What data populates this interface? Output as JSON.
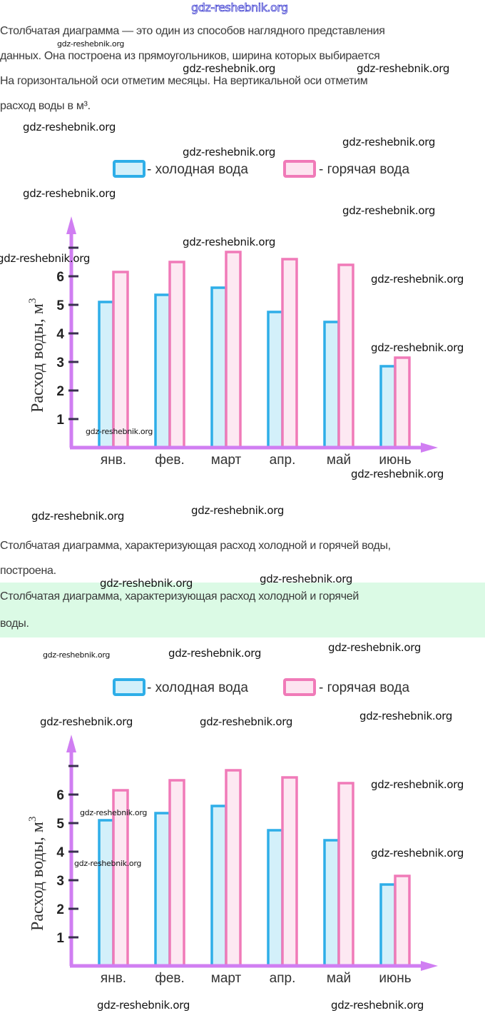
{
  "watermark": {
    "top": "gdz-reshebnik.org",
    "text": "gdz-reshebnik.org"
  },
  "intro": {
    "lines": [
      "Столбчатая диаграмма — это один из способов наглядного представления",
      "данных. Она построена из прямоугольников, ширина которых выбирается",
      "На горизонтальной оси отметим месяцы. На вертикальной оси отметим",
      "расход воды в м³."
    ]
  },
  "conclusion": {
    "lines": [
      "Столбчатая диаграмма, характеризующая расход холодной и горячей воды,",
      "построена."
    ]
  },
  "answer": {
    "lines": [
      "Столбчатая диаграмма, характеризующая расход холодной и горячей",
      "воды."
    ],
    "background": "#dbfae5"
  },
  "colors": {
    "cold_stroke": "#2eaee8",
    "cold_fill": "#d3f0fa",
    "hot_stroke": "#f07ab8",
    "hot_fill": "#fde4f0",
    "axis": "#d07ef2",
    "tick": "#3a3050"
  },
  "chart_data": [
    {
      "type": "bar",
      "title": "",
      "xlabel": "",
      "ylabel": "Расход воды, м³",
      "ylabel_main": "Расход  воды, м",
      "ylabel_sup": "3",
      "ylim": [
        0,
        7
      ],
      "yticks": [
        1,
        2,
        3,
        4,
        5,
        6,
        7
      ],
      "ytick_labels": [
        "1",
        "2",
        "3",
        "4",
        "5",
        "6",
        ""
      ],
      "grid": false,
      "legend_position": "top-center",
      "categories": [
        "янв.",
        "фев.",
        "март",
        "апр.",
        "май",
        "июнь"
      ],
      "series": [
        {
          "name": "- холодная вода",
          "values": [
            5.1,
            5.35,
            5.6,
            4.75,
            4.4,
            2.85
          ]
        },
        {
          "name": "- горячая вода",
          "values": [
            6.15,
            6.5,
            6.85,
            6.6,
            6.4,
            3.15
          ]
        }
      ]
    },
    {
      "type": "bar",
      "title": "",
      "xlabel": "",
      "ylabel": "Расход воды, м³",
      "ylabel_main": "Расход  воды, м",
      "ylabel_sup": "3",
      "ylim": [
        0,
        7
      ],
      "yticks": [
        1,
        2,
        3,
        4,
        5,
        6,
        7
      ],
      "ytick_labels": [
        "1",
        "2",
        "3",
        "4",
        "5",
        "6",
        ""
      ],
      "grid": false,
      "legend_position": "top-center",
      "categories": [
        "янв.",
        "фев.",
        "март",
        "апр.",
        "май",
        "июнь"
      ],
      "series": [
        {
          "name": "- холодная вода",
          "values": [
            5.1,
            5.35,
            5.6,
            4.75,
            4.4,
            2.85
          ]
        },
        {
          "name": "- горячая вода",
          "values": [
            6.15,
            6.5,
            6.85,
            6.6,
            6.4,
            3.15
          ]
        }
      ]
    }
  ]
}
